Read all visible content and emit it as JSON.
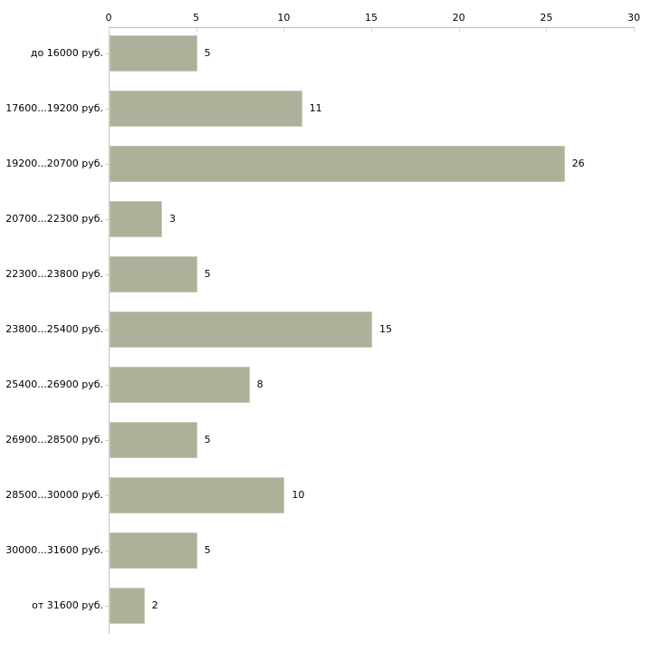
{
  "chart_data": {
    "type": "bar",
    "orientation": "horizontal",
    "title": "",
    "xlabel": "",
    "ylabel": "",
    "categories": [
      "до 16000 руб.",
      "17600...19200 руб.",
      "19200...20700 руб.",
      "20700...22300 руб.",
      "22300...23800 руб.",
      "23800...25400 руб.",
      "25400...26900 руб.",
      "26900...28500 руб.",
      "28500...30000 руб.",
      "30000...31600 руб.",
      "от 31600 руб."
    ],
    "values": [
      5,
      11,
      26,
      3,
      5,
      15,
      8,
      5,
      10,
      5,
      2
    ],
    "xlim": [
      0,
      30
    ],
    "x_ticks": [
      0,
      5,
      10,
      15,
      20,
      25,
      30
    ],
    "grid": false,
    "legend": null,
    "value_labels_shown": true,
    "colors": {
      "bar": "#acb29a",
      "bar_border": "#c6cbb4",
      "axis_line": "#b9b9b9",
      "axis_left_line": "#c6c6c6",
      "x_tick": "#d8dcbe",
      "y_tick": "#d6cfc7",
      "text": "#000000",
      "background": "#ffffff"
    }
  }
}
